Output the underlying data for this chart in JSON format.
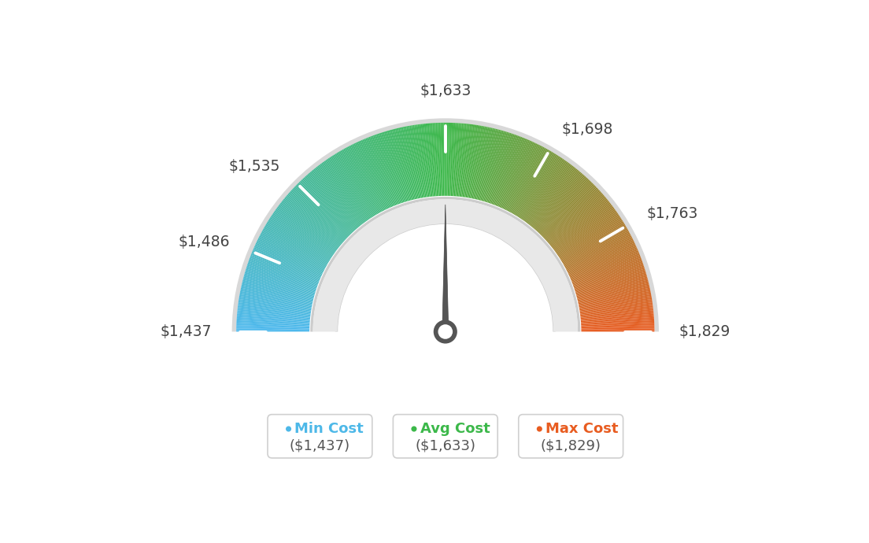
{
  "min_val": 1437,
  "max_val": 1829,
  "avg_val": 1633,
  "tick_labels": [
    "$1,437",
    "$1,486",
    "$1,535",
    "$1,633",
    "$1,698",
    "$1,763",
    "$1,829"
  ],
  "tick_values": [
    1437,
    1486,
    1535,
    1633,
    1698,
    1763,
    1829
  ],
  "legend": [
    {
      "label": "Min Cost",
      "value": "($1,437)",
      "color": "#4db8e8"
    },
    {
      "label": "Avg Cost",
      "value": "($1,633)",
      "color": "#3cb84a"
    },
    {
      "label": "Max Cost",
      "value": "($1,829)",
      "color": "#e85c20"
    }
  ],
  "needle_value": 1633,
  "background_color": "#ffffff",
  "color_stops": [
    [
      0.0,
      [
        0.3,
        0.72,
        0.93
      ]
    ],
    [
      0.5,
      [
        0.24,
        0.72,
        0.29
      ]
    ],
    [
      1.0,
      [
        0.91,
        0.36,
        0.13
      ]
    ]
  ]
}
